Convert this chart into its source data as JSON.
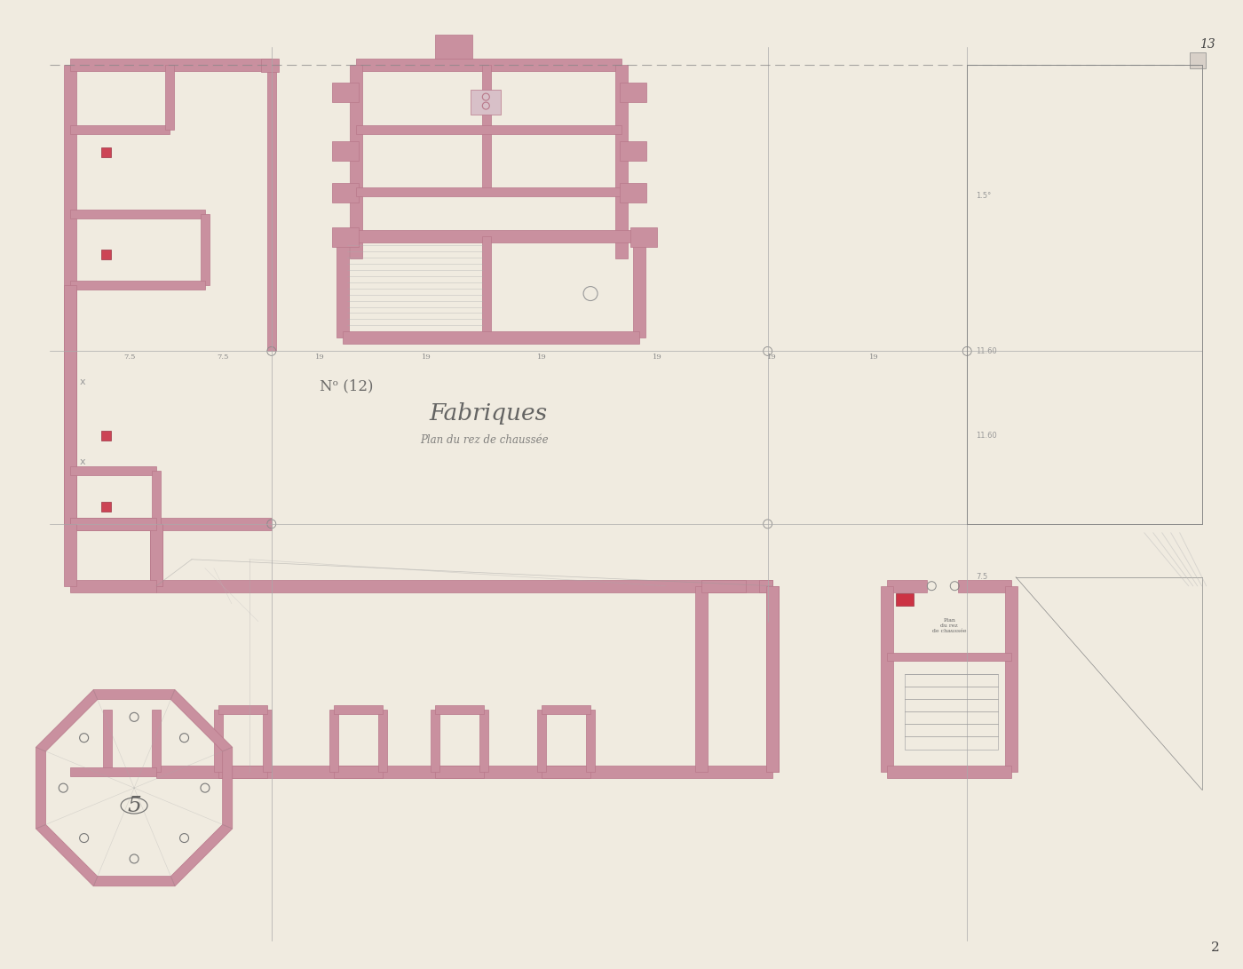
{
  "paper_color": "#f0ebe0",
  "wall_color": "#b8788a",
  "wall_fill": "#c9909f",
  "line_color": "#777777",
  "dim_line_color": "#999999",
  "text_color": "#444444",
  "title": "Fabriques",
  "subtitle": "Plan du rez de chaussee",
  "number": "N° (12)",
  "page_number": "2",
  "corner_number": "13",
  "figsize": [
    14.0,
    10.91
  ],
  "dpi": 100
}
